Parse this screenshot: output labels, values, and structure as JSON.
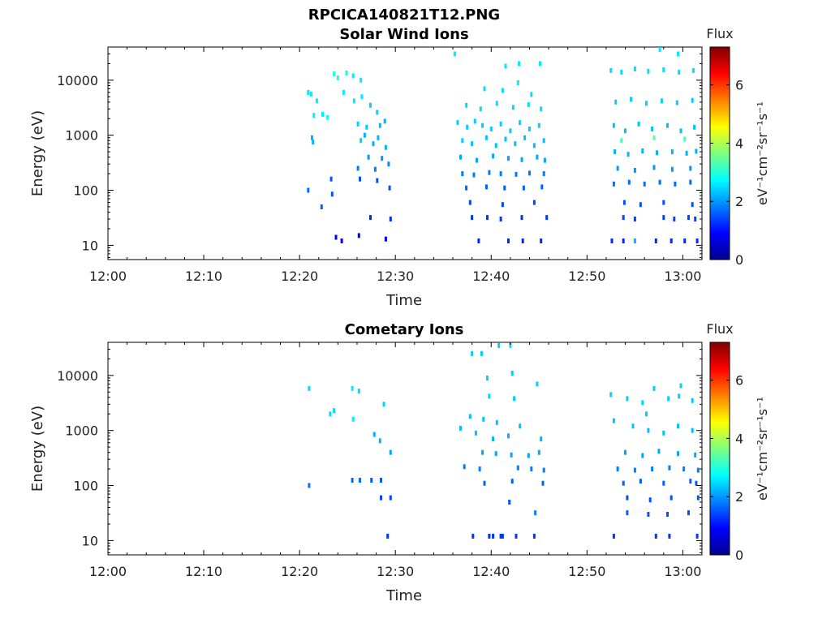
{
  "figure_title": "RPCICA140821T12.PNG",
  "chart_data": [
    {
      "type": "heatmap",
      "title": "Solar Wind Ions",
      "xlabel": "Time",
      "ylabel": "Energy (eV)",
      "x_axis": {
        "range": [
          "12:00",
          "13:02"
        ],
        "ticks": [
          "12:00",
          "12:10",
          "12:20",
          "12:30",
          "12:40",
          "12:50",
          "13:00"
        ]
      },
      "y_axis": {
        "scale": "log",
        "range": [
          5.5,
          40000
        ],
        "ticks": [
          "10",
          "100",
          "1000",
          "10000"
        ]
      },
      "colorbar": {
        "title": "Flux",
        "units": "eV⁻¹cm⁻²sr⁻¹s⁻¹",
        "range": [
          0,
          7.3
        ],
        "ticks": [
          "0",
          "2",
          "4",
          "6"
        ],
        "colormap": "jet"
      },
      "cells": [
        [
          20.9,
          6000,
          2.6
        ],
        [
          21.2,
          5600,
          2.6
        ],
        [
          21.8,
          4200,
          2.6
        ],
        [
          22.4,
          2400,
          2.6
        ],
        [
          22.9,
          2100,
          2.8
        ],
        [
          21.5,
          2300,
          2.6
        ],
        [
          21.3,
          900,
          2.2
        ],
        [
          21.4,
          750,
          2.2
        ],
        [
          20.9,
          100,
          1.7
        ],
        [
          22.3,
          50,
          1.6
        ],
        [
          23.3,
          160,
          1.5
        ],
        [
          23.4,
          85,
          1.5
        ],
        [
          23.6,
          13000,
          2.9
        ],
        [
          24.0,
          11000,
          2.9
        ],
        [
          24.9,
          13500,
          2.8
        ],
        [
          25.6,
          12000,
          2.6
        ],
        [
          26.4,
          10000,
          2.6
        ],
        [
          24.6,
          6000,
          2.6
        ],
        [
          25.7,
          4200,
          2.6
        ],
        [
          26.5,
          5000,
          2.6
        ],
        [
          27.4,
          3500,
          2.4
        ],
        [
          28.1,
          2600,
          2.4
        ],
        [
          26.1,
          1600,
          2.4
        ],
        [
          27.0,
          1400,
          2.4
        ],
        [
          28.4,
          1500,
          2.2
        ],
        [
          28.9,
          1800,
          2.2
        ],
        [
          26.4,
          800,
          2.4
        ],
        [
          26.8,
          1000,
          2.2
        ],
        [
          27.7,
          700,
          2.2
        ],
        [
          28.2,
          900,
          2.2
        ],
        [
          29.0,
          600,
          2.2
        ],
        [
          27.2,
          400,
          2.0
        ],
        [
          28.6,
          380,
          2.0
        ],
        [
          26.1,
          250,
          1.8
        ],
        [
          27.9,
          240,
          1.8
        ],
        [
          29.3,
          300,
          1.9
        ],
        [
          26.3,
          160,
          1.5
        ],
        [
          28.1,
          150,
          1.5
        ],
        [
          29.4,
          110,
          1.5
        ],
        [
          23.8,
          14,
          0.9
        ],
        [
          24.4,
          12,
          0.9
        ],
        [
          26.2,
          15,
          0.9
        ],
        [
          27.4,
          32,
          1.2
        ],
        [
          29.0,
          13,
          0.9
        ],
        [
          29.5,
          30,
          1.2
        ],
        [
          36.5,
          1700,
          2.4
        ],
        [
          37.5,
          1400,
          2.4
        ],
        [
          38.3,
          1800,
          2.4
        ],
        [
          39.1,
          1500,
          2.4
        ],
        [
          40.0,
          1300,
          2.4
        ],
        [
          41.0,
          1600,
          2.4
        ],
        [
          42.0,
          1200,
          2.4
        ],
        [
          43.0,
          1700,
          2.4
        ],
        [
          44.0,
          1300,
          2.4
        ],
        [
          45.0,
          1500,
          2.4
        ],
        [
          37.0,
          800,
          2.4
        ],
        [
          38.0,
          700,
          2.3
        ],
        [
          39.5,
          900,
          2.3
        ],
        [
          40.5,
          650,
          2.3
        ],
        [
          41.5,
          850,
          2.3
        ],
        [
          42.5,
          700,
          2.3
        ],
        [
          43.5,
          900,
          2.3
        ],
        [
          44.5,
          650,
          2.3
        ],
        [
          45.5,
          800,
          2.3
        ],
        [
          36.8,
          400,
          2.1
        ],
        [
          38.5,
          350,
          2.1
        ],
        [
          40.2,
          420,
          2.1
        ],
        [
          41.8,
          380,
          2.1
        ],
        [
          43.2,
          360,
          2.1
        ],
        [
          44.8,
          400,
          2.1
        ],
        [
          45.6,
          350,
          2.1
        ],
        [
          37.4,
          3500,
          2.5
        ],
        [
          38.9,
          3000,
          2.5
        ],
        [
          40.6,
          3800,
          2.5
        ],
        [
          42.3,
          3200,
          2.5
        ],
        [
          43.9,
          3600,
          2.5
        ],
        [
          45.2,
          3000,
          2.5
        ],
        [
          39.3,
          7000,
          2.5
        ],
        [
          41.2,
          6500,
          2.5
        ],
        [
          42.8,
          9000,
          2.6
        ],
        [
          44.2,
          5500,
          2.5
        ],
        [
          36.2,
          30000,
          2.6
        ],
        [
          41.5,
          18000,
          2.6
        ],
        [
          42.9,
          20000,
          2.6
        ],
        [
          45.1,
          20000,
          2.6
        ],
        [
          37.0,
          200,
          1.8
        ],
        [
          38.2,
          190,
          1.8
        ],
        [
          39.8,
          210,
          1.8
        ],
        [
          41.0,
          200,
          1.8
        ],
        [
          42.6,
          195,
          1.8
        ],
        [
          44.0,
          205,
          1.8
        ],
        [
          45.5,
          200,
          1.8
        ],
        [
          37.4,
          110,
          1.6
        ],
        [
          39.5,
          115,
          1.6
        ],
        [
          41.4,
          110,
          1.6
        ],
        [
          43.4,
          110,
          1.6
        ],
        [
          45.3,
          115,
          1.6
        ],
        [
          37.8,
          60,
          1.4
        ],
        [
          41.2,
          55,
          1.4
        ],
        [
          44.5,
          60,
          1.4
        ],
        [
          38.0,
          32,
          1.3
        ],
        [
          39.6,
          32,
          1.3
        ],
        [
          41.0,
          30,
          1.3
        ],
        [
          43.2,
          32,
          1.3
        ],
        [
          45.8,
          32,
          1.3
        ],
        [
          38.7,
          12,
          1.2
        ],
        [
          41.8,
          12,
          1.2
        ],
        [
          43.3,
          12,
          1.2
        ],
        [
          45.2,
          12,
          1.2
        ],
        [
          52.5,
          15000,
          2.5
        ],
        [
          53.6,
          14000,
          2.5
        ],
        [
          55.0,
          16000,
          2.5
        ],
        [
          56.4,
          14500,
          2.5
        ],
        [
          58.0,
          15500,
          2.5
        ],
        [
          59.6,
          14000,
          2.5
        ],
        [
          61.1,
          15000,
          2.5
        ],
        [
          53.0,
          4000,
          2.4
        ],
        [
          54.6,
          4500,
          2.4
        ],
        [
          56.2,
          3800,
          2.4
        ],
        [
          57.8,
          4200,
          2.4
        ],
        [
          59.4,
          3900,
          2.4
        ],
        [
          61.0,
          4300,
          2.4
        ],
        [
          52.8,
          1500,
          2.3
        ],
        [
          54.0,
          1200,
          2.3
        ],
        [
          55.4,
          1600,
          2.3
        ],
        [
          56.8,
          1300,
          2.3
        ],
        [
          58.4,
          1500,
          2.3
        ],
        [
          59.8,
          1200,
          2.3
        ],
        [
          61.2,
          1400,
          2.3
        ],
        [
          53.6,
          800,
          3.2
        ],
        [
          57.0,
          900,
          3.4
        ],
        [
          60.2,
          850,
          3.3
        ],
        [
          52.9,
          500,
          2.2
        ],
        [
          54.3,
          450,
          2.2
        ],
        [
          55.8,
          520,
          2.2
        ],
        [
          57.3,
          480,
          2.2
        ],
        [
          58.9,
          500,
          2.2
        ],
        [
          60.4,
          470,
          2.2
        ],
        [
          61.4,
          510,
          2.2
        ],
        [
          53.2,
          250,
          2.0
        ],
        [
          55.0,
          230,
          2.0
        ],
        [
          57.0,
          260,
          2.0
        ],
        [
          58.9,
          240,
          2.0
        ],
        [
          60.8,
          250,
          2.0
        ],
        [
          52.8,
          130,
          1.7
        ],
        [
          54.4,
          140,
          1.7
        ],
        [
          56.0,
          130,
          1.7
        ],
        [
          57.6,
          140,
          1.7
        ],
        [
          59.2,
          130,
          1.7
        ],
        [
          60.8,
          140,
          1.7
        ],
        [
          53.9,
          60,
          1.5
        ],
        [
          55.6,
          55,
          1.5
        ],
        [
          58.0,
          60,
          1.5
        ],
        [
          61.0,
          55,
          1.5
        ],
        [
          53.8,
          32,
          1.4
        ],
        [
          55.0,
          30,
          1.4
        ],
        [
          58.0,
          32,
          1.4
        ],
        [
          59.1,
          30,
          1.4
        ],
        [
          60.6,
          32,
          1.4
        ],
        [
          61.3,
          30,
          1.4
        ],
        [
          52.6,
          12,
          1.2
        ],
        [
          53.8,
          12,
          1.2
        ],
        [
          55.0,
          12,
          2.2
        ],
        [
          57.2,
          12,
          1.2
        ],
        [
          58.8,
          12,
          1.2
        ],
        [
          60.2,
          12,
          1.2
        ],
        [
          61.5,
          12,
          1.2
        ],
        [
          57.6,
          36000,
          2.6
        ],
        [
          59.5,
          30000,
          2.6
        ]
      ]
    },
    {
      "type": "heatmap",
      "title": "Cometary Ions",
      "xlabel": "Time",
      "ylabel": "Energy (eV)",
      "x_axis": {
        "range": [
          "12:00",
          "13:02"
        ],
        "ticks": [
          "12:00",
          "12:10",
          "12:20",
          "12:30",
          "12:40",
          "12:50",
          "13:00"
        ]
      },
      "y_axis": {
        "scale": "log",
        "range": [
          5.5,
          40000
        ],
        "ticks": [
          "10",
          "100",
          "1000",
          "10000"
        ]
      },
      "colorbar": {
        "title": "Flux",
        "units": "eV⁻¹cm⁻²sr⁻¹s⁻¹",
        "range": [
          0,
          7.3
        ],
        "ticks": [
          "0",
          "2",
          "4",
          "6"
        ],
        "colormap": "jet"
      },
      "cells": [
        [
          21.0,
          5800,
          2.5
        ],
        [
          23.2,
          2000,
          2.5
        ],
        [
          23.6,
          2300,
          2.5
        ],
        [
          25.5,
          5800,
          2.6
        ],
        [
          26.2,
          5200,
          2.5
        ],
        [
          25.6,
          1600,
          2.6
        ],
        [
          28.8,
          3000,
          2.4
        ],
        [
          27.8,
          850,
          2.2
        ],
        [
          28.4,
          650,
          2.2
        ],
        [
          29.5,
          400,
          2.1
        ],
        [
          21.0,
          100,
          1.7
        ],
        [
          25.5,
          125,
          1.7
        ],
        [
          26.3,
          125,
          1.7
        ],
        [
          27.5,
          125,
          1.6
        ],
        [
          28.5,
          125,
          1.6
        ],
        [
          28.5,
          60,
          1.4
        ],
        [
          29.5,
          60,
          1.4
        ],
        [
          29.2,
          12,
          1.3
        ],
        [
          38.0,
          25000,
          2.4
        ],
        [
          39.0,
          25000,
          2.4
        ],
        [
          40.8,
          35000,
          2.4
        ],
        [
          42.0,
          35000,
          2.5
        ],
        [
          39.6,
          9000,
          2.4
        ],
        [
          42.2,
          11000,
          2.4
        ],
        [
          44.8,
          7000,
          2.4
        ],
        [
          39.8,
          4200,
          2.4
        ],
        [
          42.4,
          3800,
          2.4
        ],
        [
          37.8,
          1800,
          2.3
        ],
        [
          39.2,
          1600,
          2.3
        ],
        [
          40.6,
          1400,
          2.3
        ],
        [
          43.0,
          1200,
          2.3
        ],
        [
          36.8,
          1100,
          2.3
        ],
        [
          38.4,
          900,
          2.3
        ],
        [
          40.2,
          700,
          2.2
        ],
        [
          41.8,
          800,
          2.2
        ],
        [
          45.2,
          700,
          2.2
        ],
        [
          39.1,
          400,
          2.1
        ],
        [
          40.5,
          380,
          2.1
        ],
        [
          42.1,
          360,
          2.1
        ],
        [
          43.9,
          350,
          2.1
        ],
        [
          45.0,
          400,
          2.1
        ],
        [
          37.2,
          220,
          1.8
        ],
        [
          38.8,
          200,
          1.8
        ],
        [
          42.8,
          210,
          1.8
        ],
        [
          44.2,
          200,
          1.8
        ],
        [
          45.5,
          190,
          1.8
        ],
        [
          39.3,
          110,
          1.6
        ],
        [
          42.2,
          120,
          1.6
        ],
        [
          45.4,
          110,
          1.6
        ],
        [
          41.9,
          50,
          1.5
        ],
        [
          44.6,
          32,
          1.9
        ],
        [
          38.1,
          12,
          1.3
        ],
        [
          39.8,
          12,
          1.3
        ],
        [
          40.2,
          12,
          1.3
        ],
        [
          41.0,
          12,
          1.3
        ],
        [
          41.2,
          12,
          1.3
        ],
        [
          42.6,
          12,
          1.3
        ],
        [
          44.5,
          12,
          1.3
        ],
        [
          52.5,
          4500,
          2.4
        ],
        [
          54.2,
          3800,
          2.4
        ],
        [
          55.8,
          3200,
          2.4
        ],
        [
          57.0,
          5800,
          2.4
        ],
        [
          58.5,
          3800,
          2.4
        ],
        [
          59.6,
          4200,
          2.4
        ],
        [
          61.0,
          3500,
          2.4
        ],
        [
          52.8,
          1500,
          2.3
        ],
        [
          54.8,
          1200,
          2.3
        ],
        [
          56.4,
          1000,
          2.3
        ],
        [
          58.0,
          900,
          2.3
        ],
        [
          59.5,
          1200,
          2.3
        ],
        [
          61.0,
          1000,
          2.3
        ],
        [
          54.0,
          400,
          2.1
        ],
        [
          55.8,
          350,
          2.1
        ],
        [
          57.5,
          420,
          2.1
        ],
        [
          59.5,
          380,
          2.1
        ],
        [
          61.3,
          360,
          2.1
        ],
        [
          53.2,
          200,
          1.8
        ],
        [
          55.0,
          190,
          1.8
        ],
        [
          56.8,
          200,
          1.8
        ],
        [
          58.6,
          210,
          1.8
        ],
        [
          60.1,
          200,
          1.8
        ],
        [
          61.6,
          190,
          1.8
        ],
        [
          53.8,
          110,
          1.6
        ],
        [
          55.6,
          120,
          1.6
        ],
        [
          58.0,
          110,
          1.6
        ],
        [
          60.8,
          120,
          1.6
        ],
        [
          61.4,
          110,
          1.6
        ],
        [
          54.2,
          60,
          1.5
        ],
        [
          56.6,
          55,
          1.5
        ],
        [
          58.8,
          60,
          1.5
        ],
        [
          61.6,
          60,
          1.5
        ],
        [
          54.2,
          32,
          1.6
        ],
        [
          56.4,
          30,
          1.5
        ],
        [
          58.4,
          30,
          1.5
        ],
        [
          60.6,
          32,
          1.5
        ],
        [
          52.8,
          12,
          1.3
        ],
        [
          57.2,
          12,
          1.3
        ],
        [
          58.6,
          12,
          1.3
        ],
        [
          61.5,
          12,
          1.3
        ],
        [
          56.2,
          2000,
          2.4
        ],
        [
          59.8,
          6500,
          2.4
        ]
      ]
    }
  ]
}
